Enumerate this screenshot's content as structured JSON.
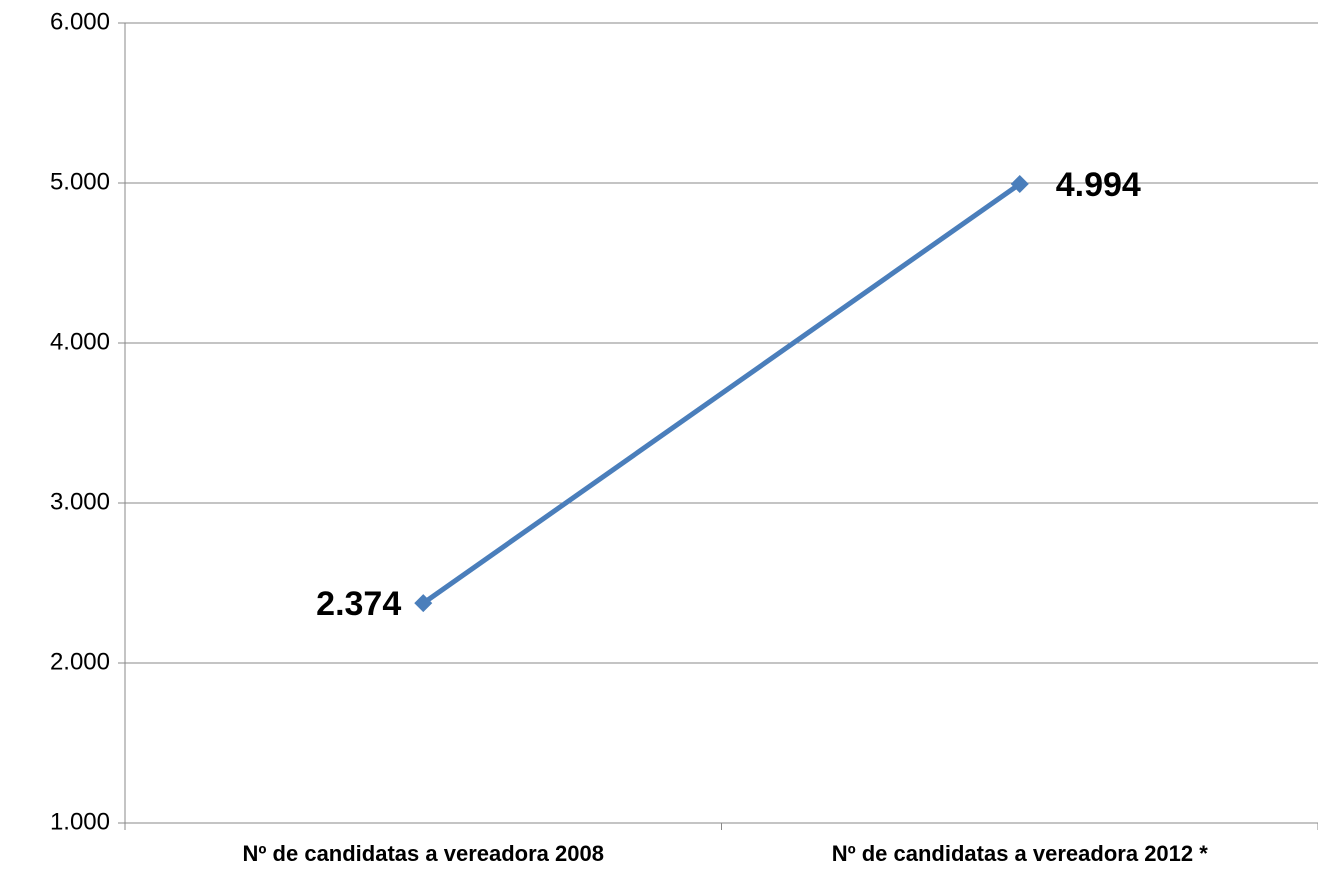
{
  "chart_data": {
    "type": "line",
    "categories": [
      "Nº de candidatas a vereadora 2008",
      "Nº de candidatas a vereadora 2012 *"
    ],
    "series": [
      {
        "color": "#4a7ebb",
        "values": [
          2374,
          4994
        ],
        "value_labels": [
          "2.374",
          "4.994"
        ]
      }
    ],
    "ylim": [
      1000,
      6000
    ],
    "yticks": [
      {
        "value": 1000,
        "label": "1.000"
      },
      {
        "value": 2000,
        "label": "2.000"
      },
      {
        "value": 3000,
        "label": "3.000"
      },
      {
        "value": 4000,
        "label": "4.000"
      },
      {
        "value": 5000,
        "label": "5.000"
      },
      {
        "value": 6000,
        "label": "6.000"
      }
    ],
    "grid": true
  }
}
